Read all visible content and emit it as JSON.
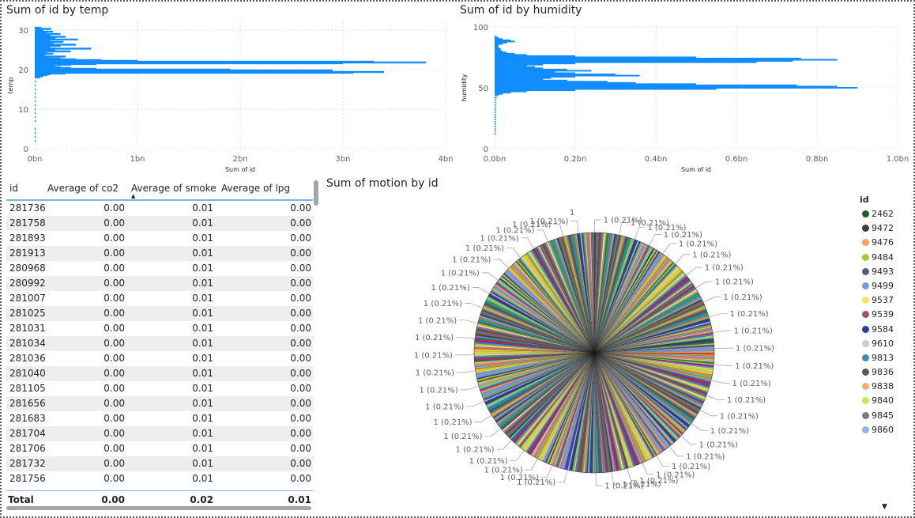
{
  "chart_data": [
    {
      "type": "bar",
      "orientation": "horizontal",
      "title": "Sum of id by temp",
      "xlabel": "Sum of id",
      "ylabel": "temp",
      "xlim": [
        0,
        4
      ],
      "x_unit": "bn",
      "ylim": [
        0,
        32
      ],
      "x_ticks": [
        "0bn",
        "1bn",
        "2bn",
        "3bn",
        "4bn"
      ],
      "y_ticks": [
        "0",
        "10",
        "20",
        "30"
      ],
      "grid": true,
      "color": "#118DFF",
      "y": [
        2.0,
        3.0,
        4.0,
        5.0,
        7.0,
        8.0,
        9.0,
        10.0,
        11.0,
        12.0,
        13.0,
        14.0,
        15.0,
        16.0,
        17.0,
        18.0,
        18.3,
        18.6,
        18.8,
        19.0,
        19.2,
        19.4,
        19.6,
        19.8,
        20.0,
        20.2,
        20.4,
        20.6,
        20.8,
        21.0,
        21.2,
        21.4,
        21.6,
        21.8,
        22.0,
        22.2,
        22.4,
        22.6,
        22.8,
        23.0,
        23.3,
        23.6,
        24.0,
        24.3,
        24.6,
        25.0,
        25.3,
        25.6,
        26.0,
        26.3,
        26.6,
        27.0,
        27.3,
        27.6,
        28.0,
        28.3,
        28.6,
        29.0,
        29.3,
        29.6,
        30.0,
        30.3,
        30.6
      ],
      "values": [
        0.01,
        0.01,
        0.01,
        0.01,
        0.01,
        0.01,
        0.01,
        0.01,
        0.01,
        0.01,
        0.01,
        0.01,
        0.01,
        0.01,
        0.01,
        0.05,
        0.08,
        0.12,
        0.15,
        0.3,
        3.1,
        3.4,
        1.0,
        2.9,
        1.9,
        0.6,
        0.35,
        0.25,
        0.2,
        0.15,
        0.35,
        0.6,
        3.0,
        3.81,
        3.3,
        1.0,
        0.65,
        0.4,
        0.25,
        0.15,
        0.3,
        0.1,
        0.18,
        0.12,
        0.35,
        0.2,
        0.55,
        0.15,
        0.25,
        0.4,
        0.18,
        0.28,
        0.15,
        0.42,
        0.2,
        0.3,
        0.15,
        0.25,
        0.12,
        0.18,
        0.08,
        0.16,
        0.06
      ]
    },
    {
      "type": "bar",
      "orientation": "horizontal",
      "title": "Sum of id by humidity",
      "xlabel": "Sum of id",
      "ylabel": "humidity",
      "xlim": [
        0,
        1.0
      ],
      "x_unit": "bn",
      "ylim": [
        0,
        100
      ],
      "x_ticks": [
        "0.0bn",
        "0.2bn",
        "0.4bn",
        "0.6bn",
        "0.8bn",
        "1.0bn"
      ],
      "y_ticks": [
        "0",
        "50",
        "100"
      ],
      "grid": true,
      "color": "#118DFF",
      "y": [
        12,
        14,
        16,
        18,
        20,
        22,
        24,
        26,
        28,
        30,
        32,
        34,
        36,
        38,
        40,
        42,
        44,
        45,
        46,
        47,
        48,
        49,
        50,
        51,
        52,
        53,
        54,
        55,
        56,
        57,
        58,
        59,
        60,
        61,
        62,
        63,
        64,
        65,
        66,
        67,
        68,
        69,
        70,
        71,
        72,
        73,
        74,
        75,
        76,
        77,
        78,
        79,
        80,
        81,
        82,
        83,
        84,
        85,
        86,
        87,
        88,
        89,
        90,
        91,
        92
      ],
      "values": [
        0.003,
        0.003,
        0.003,
        0.003,
        0.003,
        0.003,
        0.003,
        0.003,
        0.003,
        0.003,
        0.003,
        0.003,
        0.003,
        0.003,
        0.003,
        0.005,
        0.01,
        0.02,
        0.04,
        0.08,
        0.2,
        0.55,
        0.9,
        0.85,
        0.75,
        0.5,
        0.35,
        0.28,
        0.18,
        0.12,
        0.14,
        0.2,
        0.36,
        0.3,
        0.2,
        0.15,
        0.24,
        0.18,
        0.12,
        0.1,
        0.08,
        0.12,
        0.2,
        0.65,
        0.74,
        0.85,
        0.76,
        0.5,
        0.2,
        0.08,
        0.05,
        0.03,
        0.02,
        0.015,
        0.015,
        0.01,
        0.01,
        0.01,
        0.02,
        0.03,
        0.05,
        0.04,
        0.02,
        0.01,
        0.005
      ]
    },
    {
      "type": "pie",
      "title": "Sum of motion by id",
      "legend_title": "id",
      "legend_position": "right",
      "slice_count": 476,
      "slice_value": 1,
      "slice_percent": "0.21%",
      "slice_label": "1 (0.21%)",
      "top_label": "1",
      "legend": [
        {
          "label": "2462",
          "color": "#1B5E20"
        },
        {
          "label": "9472",
          "color": "#3A3F44"
        },
        {
          "label": "9476",
          "color": "#F4A460"
        },
        {
          "label": "9484",
          "color": "#9ACD32"
        },
        {
          "label": "9493",
          "color": "#5A5F66"
        },
        {
          "label": "9499",
          "color": "#7B9BE0"
        },
        {
          "label": "9537",
          "color": "#F2E266"
        },
        {
          "label": "9539",
          "color": "#A0526D"
        },
        {
          "label": "9584",
          "color": "#2A3EA8"
        },
        {
          "label": "9610",
          "color": "#D8C8B8"
        },
        {
          "label": "9813",
          "color": "#3E8CB8"
        },
        {
          "label": "9836",
          "color": "#555A60"
        },
        {
          "label": "9838",
          "color": "#F5B070"
        },
        {
          "label": "9840",
          "color": "#C4E85A"
        },
        {
          "label": "9845",
          "color": "#777A80"
        },
        {
          "label": "9860",
          "color": "#9AB0F0"
        }
      ]
    },
    {
      "type": "table",
      "columns": [
        "id",
        "Average of co2",
        "Average of smoke",
        "Average of lpg"
      ],
      "sorted_column": "Average of smoke",
      "rows": [
        [
          "281736",
          "0.00",
          "0.01",
          "0.00"
        ],
        [
          "281758",
          "0.00",
          "0.01",
          "0.00"
        ],
        [
          "281893",
          "0.00",
          "0.01",
          "0.00"
        ],
        [
          "281913",
          "0.00",
          "0.01",
          "0.00"
        ],
        [
          "280968",
          "0.00",
          "0.01",
          "0.00"
        ],
        [
          "280992",
          "0.00",
          "0.01",
          "0.00"
        ],
        [
          "281007",
          "0.00",
          "0.01",
          "0.00"
        ],
        [
          "281025",
          "0.00",
          "0.01",
          "0.00"
        ],
        [
          "281031",
          "0.00",
          "0.01",
          "0.00"
        ],
        [
          "281034",
          "0.00",
          "0.01",
          "0.00"
        ],
        [
          "281036",
          "0.00",
          "0.01",
          "0.00"
        ],
        [
          "281040",
          "0.00",
          "0.01",
          "0.00"
        ],
        [
          "281105",
          "0.00",
          "0.01",
          "0.00"
        ],
        [
          "281656",
          "0.00",
          "0.01",
          "0.00"
        ],
        [
          "281683",
          "0.00",
          "0.01",
          "0.00"
        ],
        [
          "281704",
          "0.00",
          "0.01",
          "0.00"
        ],
        [
          "281706",
          "0.00",
          "0.01",
          "0.00"
        ],
        [
          "281732",
          "0.00",
          "0.01",
          "0.00"
        ],
        [
          "281756",
          "0.00",
          "0.01",
          "0.00"
        ]
      ],
      "total": [
        "Total",
        "0.00",
        "0.02",
        "0.01"
      ]
    }
  ]
}
